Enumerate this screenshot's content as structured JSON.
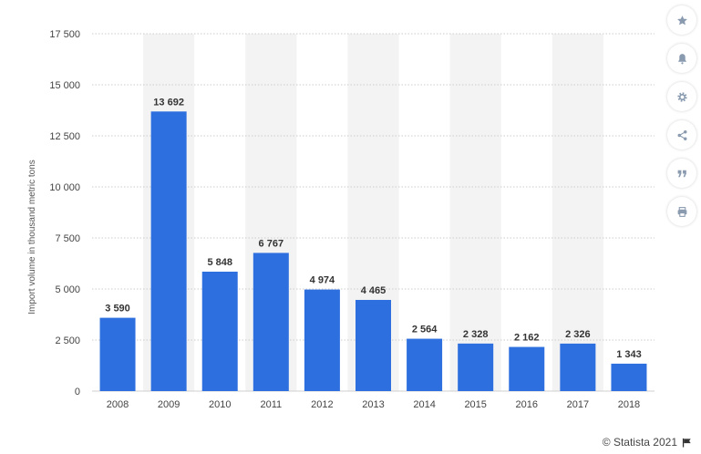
{
  "chart_data": {
    "type": "bar",
    "categories": [
      "2008",
      "2009",
      "2010",
      "2011",
      "2012",
      "2013",
      "2014",
      "2015",
      "2016",
      "2017",
      "2018"
    ],
    "values": [
      3590,
      13692,
      5848,
      6767,
      4974,
      4465,
      2564,
      2328,
      2162,
      2326,
      1343
    ],
    "value_labels": [
      "3 590",
      "13 692",
      "5 848",
      "6 767",
      "4 974",
      "4 465",
      "2 564",
      "2 328",
      "2 162",
      "2 326",
      "1 343"
    ],
    "ylabel": "Import volume in thousand metric tons",
    "xlabel": "",
    "ylim": [
      0,
      17500
    ],
    "yticks": [
      0,
      2500,
      5000,
      7500,
      10000,
      12500,
      15000,
      17500
    ],
    "ytick_labels": [
      "0",
      "2 500",
      "5 000",
      "7 500",
      "10 000",
      "12 500",
      "15 000",
      "17 500"
    ],
    "grid": true,
    "bar_color": "#2e6fdf",
    "alt_band_color": "#f3f3f3"
  },
  "toolbar": {
    "buttons": [
      {
        "name": "favorite-button",
        "icon": "star-icon"
      },
      {
        "name": "notification-button",
        "icon": "bell-icon"
      },
      {
        "name": "settings-button",
        "icon": "gear-icon"
      },
      {
        "name": "share-button",
        "icon": "share-icon"
      },
      {
        "name": "cite-button",
        "icon": "quote-icon"
      },
      {
        "name": "print-button",
        "icon": "printer-icon"
      }
    ]
  },
  "credit": {
    "text": "© Statista 2021",
    "icon": "flag-icon"
  }
}
